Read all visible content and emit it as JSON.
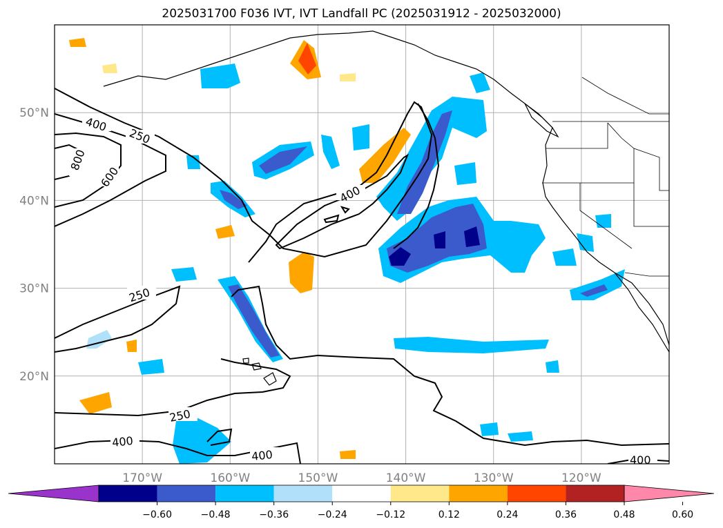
{
  "chart_data": {
    "type": "map",
    "title": "2025031700 F036 IVT, IVT Landfall PC (2025031912 - 2025032000)",
    "lon_ticks": [
      {
        "lon": -170,
        "label": "170°W"
      },
      {
        "lon": -160,
        "label": "160°W"
      },
      {
        "lon": -150,
        "label": "150°W"
      },
      {
        "lon": -140,
        "label": "140°W"
      },
      {
        "lon": -130,
        "label": "130°W"
      },
      {
        "lon": -120,
        "label": "120°W"
      }
    ],
    "lat_ticks": [
      {
        "lat": 20,
        "label": "20°N"
      },
      {
        "lat": 30,
        "label": "30°N"
      },
      {
        "lat": 40,
        "label": "40°N"
      },
      {
        "lat": 50,
        "label": "50°N"
      }
    ],
    "grid": true,
    "colorbar": {
      "orientation": "horizontal",
      "extend": "both",
      "colors": [
        "#9933cc",
        "#00008b",
        "#3b5bcc",
        "#00bfff",
        "#b0e0fa",
        "#ffffff",
        "#ffe88a",
        "#ffa500",
        "#ff4500",
        "#b22222",
        "#ff88aa"
      ],
      "ticks": [
        "−0.60",
        "−0.48",
        "−0.36",
        "−0.24",
        "−0.12",
        "0.12",
        "0.24",
        "0.36",
        "0.48",
        "0.60"
      ]
    },
    "contour_labels": [
      "400",
      "250",
      "800",
      "600",
      "400",
      "250",
      "250",
      "400",
      "400",
      "400"
    ]
  }
}
